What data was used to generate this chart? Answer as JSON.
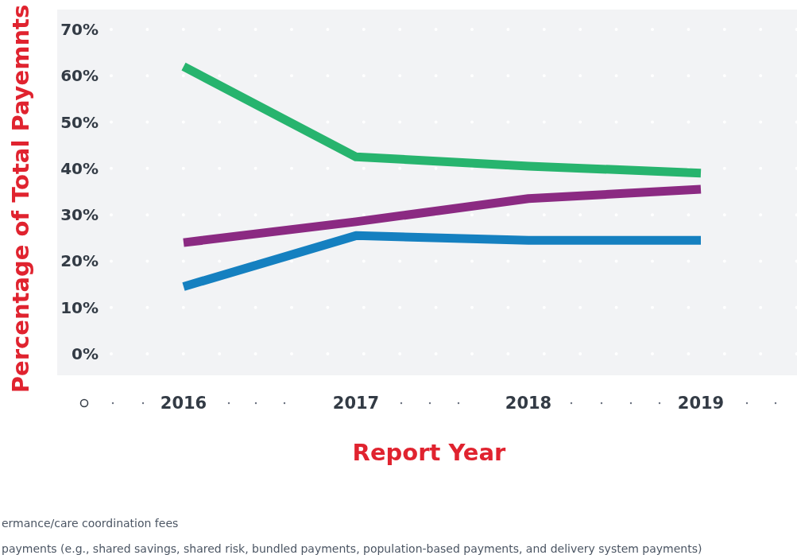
{
  "chart_data": {
    "type": "line",
    "xlabel": "Report Year",
    "ylabel": "Percentage of Total Payemnts",
    "categories": [
      "2016",
      "2017",
      "2018",
      "2019"
    ],
    "series": [
      {
        "color": "#27b46e",
        "values": [
          62,
          42.5,
          40.5,
          39
        ]
      },
      {
        "color": "#8b2a82",
        "values": [
          24,
          28.5,
          33.5,
          35.5
        ]
      },
      {
        "color": "#1580c0",
        "values": [
          14.5,
          25.5,
          24.5,
          24.5
        ]
      }
    ],
    "ylim": [
      0,
      70
    ],
    "yticks": [
      {
        "value": 0,
        "label": "0%"
      },
      {
        "value": 10,
        "label": "10%"
      },
      {
        "value": 20,
        "label": "20%"
      },
      {
        "value": 30,
        "label": "30%"
      },
      {
        "value": 40,
        "label": "40%"
      },
      {
        "value": 50,
        "label": "50%"
      },
      {
        "value": 60,
        "label": "60%"
      },
      {
        "value": 70,
        "label": "70%"
      }
    ],
    "grid": "y",
    "line_style": "solid",
    "annotations": [
      "ermance/care coordination fees",
      "payments (e.g., shared savings, shared risk, bundled payments, population-based payments, and delivery system payments)"
    ]
  }
}
